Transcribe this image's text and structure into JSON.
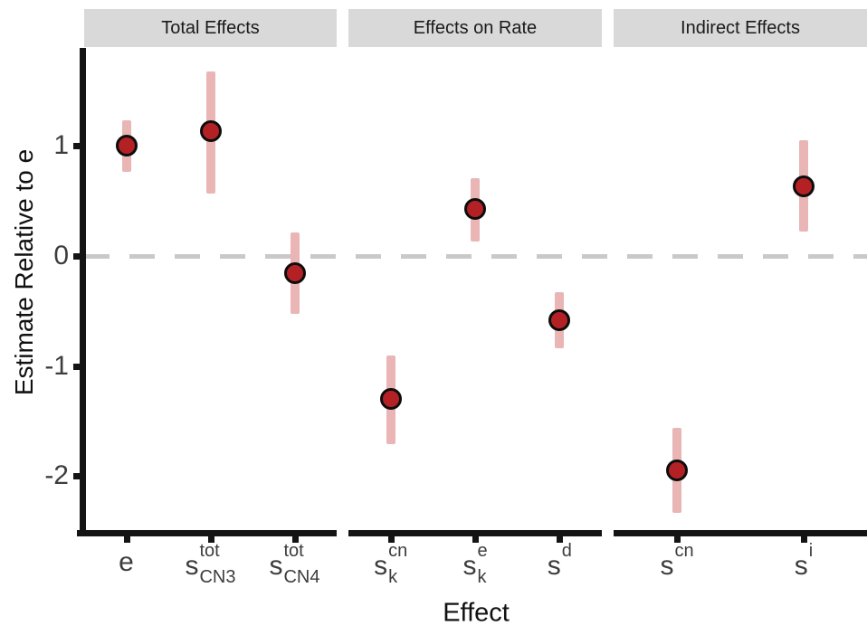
{
  "chart_data": {
    "type": "pointrange-scatter",
    "title": "",
    "xlabel": "Effect",
    "ylabel": "Estimate Relative to e",
    "yticks": [
      1,
      0,
      -1,
      -2
    ],
    "ylim": [
      -2.51,
      1.89
    ],
    "reference_hline": 0,
    "grid": false,
    "legend": "none",
    "facets": [
      {
        "label": "Total Effects",
        "points": [
          {
            "label": {
              "base": "e"
            },
            "estimate": 1.0,
            "ci_low": 0.76,
            "ci_high": 1.23
          },
          {
            "label": {
              "base": "s",
              "sup": "tot",
              "sub": "CN3"
            },
            "estimate": 1.13,
            "ci_low": 0.57,
            "ci_high": 1.68
          },
          {
            "label": {
              "base": "s",
              "sup": "tot",
              "sub": "CN4"
            },
            "estimate": -0.16,
            "ci_low": -0.53,
            "ci_high": 0.21
          }
        ]
      },
      {
        "label": "Effects on Rate",
        "points": [
          {
            "label": {
              "base": "s",
              "sup": "cn",
              "sub": "k"
            },
            "estimate": -1.3,
            "ci_low": -1.71,
            "ci_high": -0.9
          },
          {
            "label": {
              "base": "s",
              "sup": "e",
              "sub": "k"
            },
            "estimate": 0.43,
            "ci_low": 0.13,
            "ci_high": 0.71
          },
          {
            "label": {
              "base": "s",
              "sup": "d"
            },
            "estimate": -0.58,
            "ci_low": -0.84,
            "ci_high": -0.33
          }
        ]
      },
      {
        "label": "Indirect Effects",
        "points": [
          {
            "label": {
              "base": "s",
              "sup": "cn"
            },
            "estimate": -1.95,
            "ci_low": -2.33,
            "ci_high": -1.56
          },
          {
            "label": {
              "base": "s",
              "sup": "i"
            },
            "estimate": 0.63,
            "ci_low": 0.22,
            "ci_high": 1.05
          }
        ]
      }
    ],
    "colors": {
      "point_fill": "#b42125",
      "point_stroke": "#0d0d0d",
      "error_bar": "#eab5b5",
      "strip_background": "#d9d9d9",
      "dashed_line": "#c9c9c9",
      "axis": "#141414",
      "tick_text": "#3d3d3d",
      "title_text": "#111111"
    }
  }
}
